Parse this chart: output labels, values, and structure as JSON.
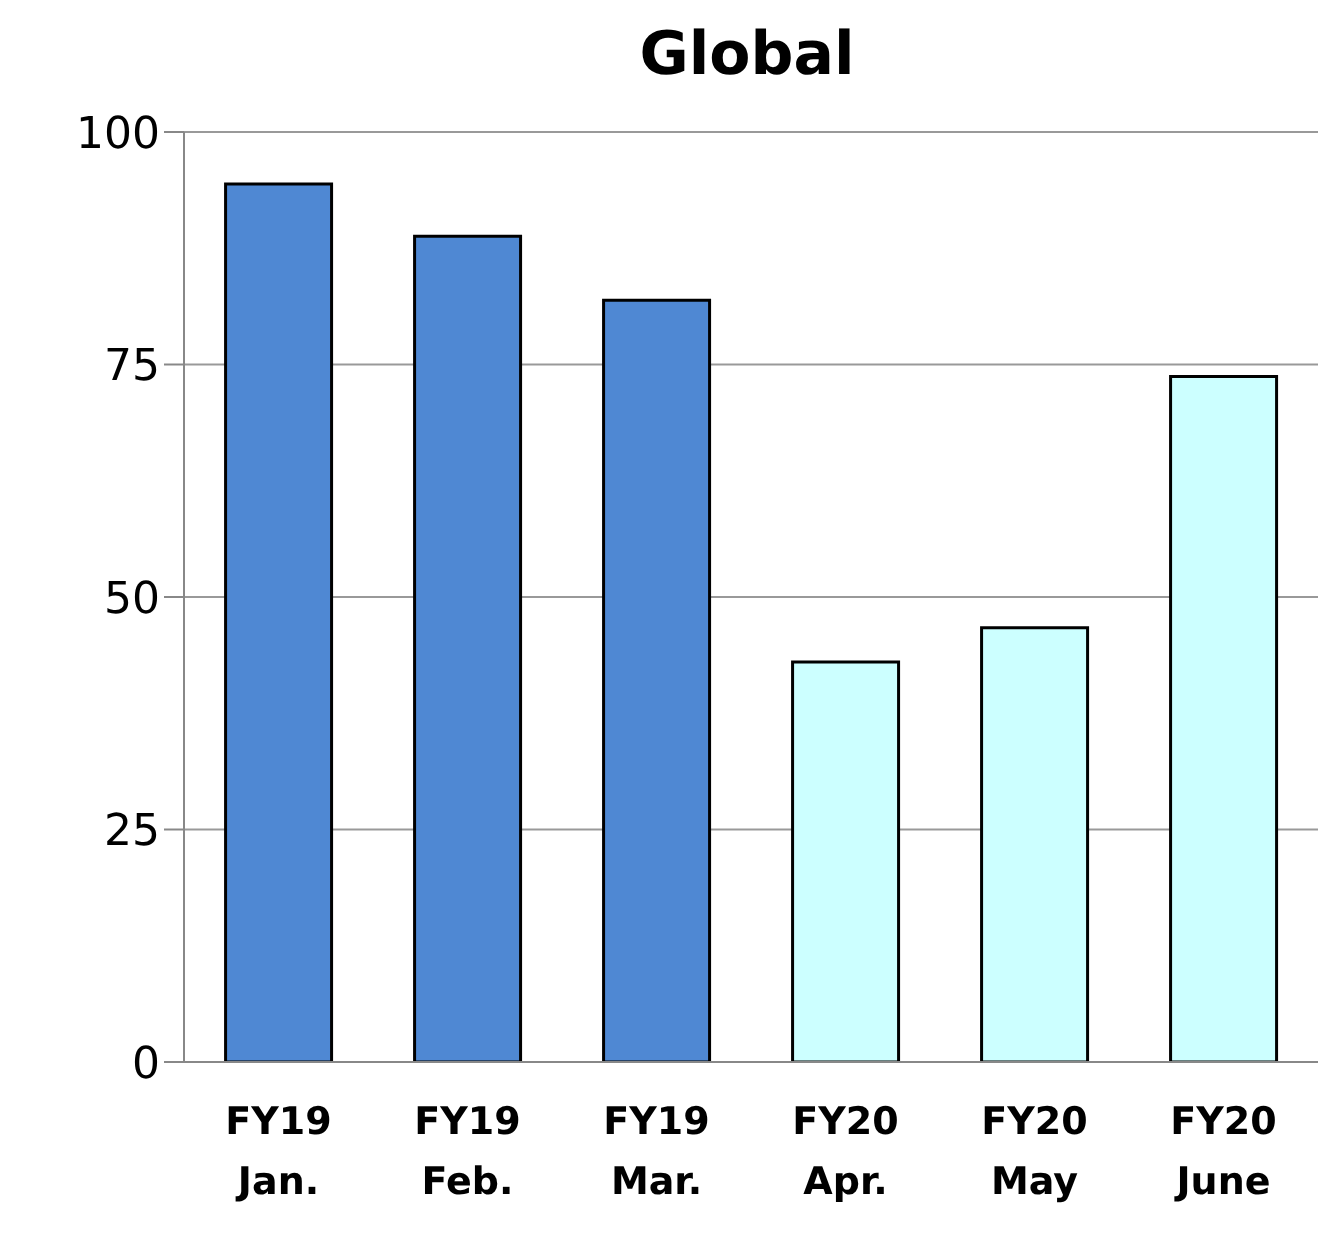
{
  "chart_data": {
    "type": "bar",
    "title": "Global",
    "categories": [
      "FY19\nJan.",
      "FY19\nFeb.",
      "FY19\nMar.",
      "FY20\nApr.",
      "FY20\nMay",
      "FY20\nJune"
    ],
    "values": [
      94.4,
      88.8,
      81.9,
      43.0,
      46.7,
      73.7
    ],
    "colors": [
      "#4f88d3",
      "#4f88d3",
      "#4f88d3",
      "#ccffff",
      "#ccffff",
      "#ccffff"
    ],
    "ylim": [
      0,
      100
    ],
    "yticks": [
      0,
      25,
      50,
      75,
      100
    ],
    "grid": "y"
  }
}
